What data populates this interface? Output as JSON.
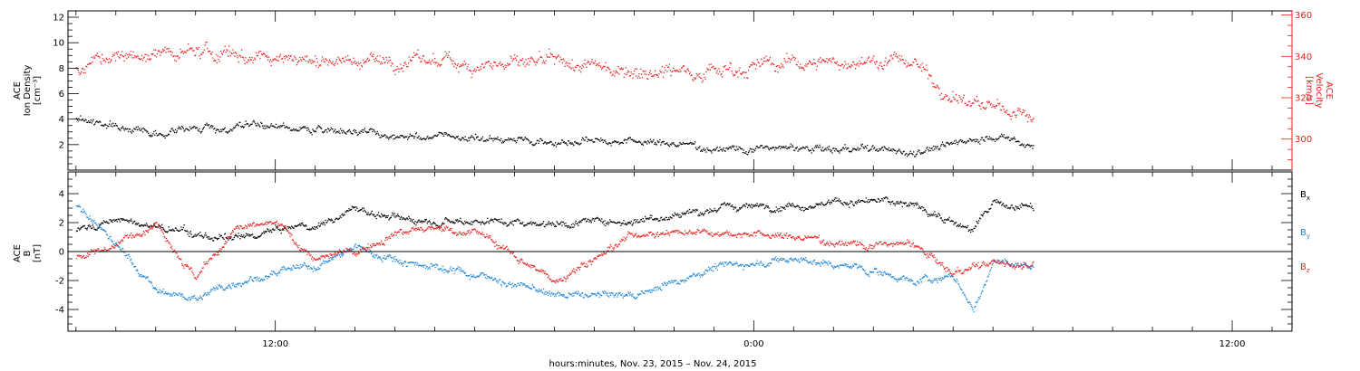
{
  "chart_data": [
    {
      "type": "scatter",
      "panel": "top",
      "ylabel_left": [
        "ACE",
        "Ion Density",
        "[cm⁻³]"
      ],
      "ylabel_right": [
        "ACE",
        "Velocity",
        "[km/s]"
      ],
      "ylim_left": [
        0,
        12.5
      ],
      "ylim_right": [
        285,
        362
      ],
      "yticks_left": [
        2,
        4,
        6,
        8,
        10,
        12
      ],
      "yticks_right": [
        300,
        320,
        340,
        360
      ],
      "colors": {
        "left_axis": "#000000",
        "right_axis": "#e8211f"
      },
      "x_range_hours": [
        6.8,
        37.5
      ],
      "data_end_hour": 31.0,
      "series": [
        {
          "axis": "left",
          "color": "#000000",
          "profile_hours": [
            7,
            9,
            11,
            13,
            15,
            17,
            19,
            21,
            23,
            25,
            27,
            28,
            29.5,
            30,
            31
          ],
          "profile_values": [
            4.0,
            3.1,
            3.5,
            3.2,
            2.8,
            2.5,
            2.4,
            2.3,
            1.8,
            1.7,
            1.6,
            1.5,
            2.4,
            2.8,
            1.9
          ]
        },
        {
          "axis": "right",
          "color": "#e8211f",
          "profile_hours": [
            7,
            8,
            9,
            10,
            11,
            12,
            13,
            15,
            17,
            19,
            21,
            23,
            25,
            27,
            28,
            29,
            30,
            31
          ],
          "profile_values": [
            335,
            340,
            341,
            342,
            341,
            341,
            339,
            338,
            337,
            336,
            334,
            334,
            337,
            338,
            338,
            320,
            315,
            312
          ]
        }
      ]
    },
    {
      "type": "scatter",
      "panel": "bottom",
      "ylabel_left": [
        "ACE",
        "B",
        "[nT]"
      ],
      "ylim": [
        -5.5,
        5.5
      ],
      "yticks": [
        -4,
        -2,
        0,
        2,
        4
      ],
      "zero_line": true,
      "x_range_hours": [
        6.8,
        37.5
      ],
      "data_end_hour": 31.0,
      "series": [
        {
          "name": "Bx",
          "color": "#000000",
          "profile_hours": [
            7,
            8,
            10,
            11,
            12,
            13,
            14,
            15,
            17,
            19,
            21,
            23,
            25,
            27,
            28,
            29.5,
            30,
            31
          ],
          "profile_values": [
            1.5,
            2.2,
            1.2,
            0.8,
            1.5,
            1.8,
            3.0,
            2.3,
            2.2,
            2.0,
            2.2,
            3.0,
            3.3,
            3.5,
            3.3,
            1.5,
            3.4,
            3.0
          ]
        },
        {
          "name": "By",
          "color": "#1f85d8",
          "profile_hours": [
            7,
            8,
            9,
            10,
            11,
            12,
            13,
            14,
            15,
            17,
            19,
            21,
            23,
            25,
            27,
            28,
            29,
            29.5,
            30,
            31
          ],
          "profile_values": [
            3.2,
            0.5,
            -2.7,
            -3.2,
            -2.0,
            -1.5,
            -1.0,
            0.3,
            -0.5,
            -1.5,
            -3.0,
            -3.0,
            -1.0,
            -0.5,
            -1.3,
            -2.0,
            -1.7,
            -4.0,
            -0.7,
            -1.0
          ]
        },
        {
          "name": "Bz",
          "color": "#e8211f",
          "profile_hours": [
            7,
            8,
            9,
            10,
            11,
            12,
            13,
            14,
            15,
            17,
            19,
            21,
            23,
            25,
            27,
            28,
            29,
            30,
            31
          ],
          "profile_values": [
            -0.3,
            0.5,
            2.2,
            -1.8,
            1.5,
            2.0,
            -0.5,
            0.0,
            1.5,
            1.5,
            -2.0,
            1.3,
            1.5,
            1.0,
            0.5,
            0.5,
            -1.5,
            -0.8,
            -0.8
          ]
        }
      ],
      "legend": [
        {
          "label": "B",
          "sub": "x",
          "color": "#000000"
        },
        {
          "label": "B",
          "sub": "y",
          "color": "#1f85d8"
        },
        {
          "label": "B",
          "sub": "z",
          "color": "#e8211f"
        }
      ]
    }
  ],
  "x_axis": {
    "label": "hours:minutes, Nov. 23, 2015 – Nov. 24, 2015",
    "ticks": [
      {
        "hour": 12,
        "label": "12:00"
      },
      {
        "hour": 24,
        "label": "0:00"
      },
      {
        "hour": 36,
        "label": "12:00"
      }
    ],
    "minor_step_hours": 1
  }
}
